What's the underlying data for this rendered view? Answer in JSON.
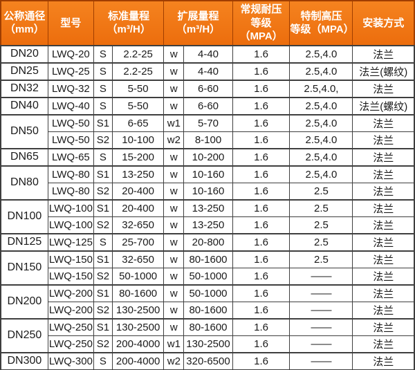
{
  "colors": {
    "header_bg_top": "#f5831f",
    "header_bg_bottom": "#ec6d0d",
    "header_text": "#ffffff",
    "header_separator": "#a03e00",
    "outer_border": "#3e3e3e",
    "group_border": "#3e3e3e",
    "sub_border": "#999999",
    "body_text": "#1a1a1a",
    "body_bg": "#ffffff"
  },
  "header": {
    "col_dn": [
      "公称通径",
      "（mm）"
    ],
    "col_model": "型号",
    "col_std": [
      "标准量程",
      "（m³/H）"
    ],
    "col_ext": [
      "扩展量程",
      "（m³/H）"
    ],
    "col_mpa": [
      "常规耐压",
      "等级（MPA）"
    ],
    "col_hp": [
      "特制高压",
      "等级（MPA）"
    ],
    "col_install": "安装方式"
  },
  "rows": [
    {
      "dn": "DN20",
      "model": "LWQ-20",
      "s": "S",
      "std": "2.2-25",
      "w": "w",
      "ext": "4-40",
      "mpa": "1.6",
      "hp": "2.5,4.0",
      "install": "法兰"
    },
    {
      "dn": "DN25",
      "model": "LWQ-25",
      "s": "S",
      "std": "2.2-25",
      "w": "w",
      "ext": "4-40",
      "mpa": "1.6",
      "hp": "2.5,4.0",
      "install": "法兰(螺纹)"
    },
    {
      "dn": "DN32",
      "model": "LWQ-32",
      "s": "S",
      "std": "5-50",
      "w": "w",
      "ext": "6-60",
      "mpa": "1.6",
      "hp": "2.5,4.0,",
      "install": "法兰"
    },
    {
      "dn": "DN40",
      "model": "LWQ-40",
      "s": "S",
      "std": "5-50",
      "w": "w",
      "ext": "6-60",
      "mpa": "1.6",
      "hp": "2.5,4.0",
      "install": "法兰(螺纹)"
    },
    {
      "dn": "DN50",
      "model": "LWQ-50",
      "s": "S1",
      "std": "6-65",
      "w": "w1",
      "ext": "5-70",
      "mpa": "1.6",
      "hp": "2.5,4.0",
      "install": "法兰"
    },
    {
      "model": "LWQ-50",
      "s": "S2",
      "std": "10-100",
      "w": "w2",
      "ext": "8-100",
      "mpa": "1.6",
      "hp": "2.5,4.0",
      "install": "法兰"
    },
    {
      "dn": "DN65",
      "model": "LWQ-65",
      "s": "S",
      "std": "15-200",
      "w": "w",
      "ext": "10-200",
      "mpa": "1.6",
      "hp": "2.5,4.0",
      "install": "法兰"
    },
    {
      "dn": "DN80",
      "model": "LWQ-80",
      "s": "S1",
      "std": "13-250",
      "w": "w",
      "ext": "10-160",
      "mpa": "1.6",
      "hp": "2.5,4.0",
      "install": "法兰"
    },
    {
      "model": "LWQ-80",
      "s": "S2",
      "std": "20-400",
      "w": "w",
      "ext": "10-160",
      "mpa": "1.6",
      "hp": "2.5",
      "install": "法兰"
    },
    {
      "dn": "DN100",
      "model": "LWQ-100",
      "s": "S1",
      "std": "20-400",
      "w": "w",
      "ext": "13-250",
      "mpa": "1.6",
      "hp": "2.5",
      "install": "法兰"
    },
    {
      "model": "LWQ-100",
      "s": "S2",
      "std": "32-650",
      "w": "w",
      "ext": "13-250",
      "mpa": "1.6",
      "hp": "2.5",
      "install": "法兰"
    },
    {
      "dn": "DN125",
      "model": "LWQ-125",
      "s": "S",
      "std": "25-700",
      "w": "w",
      "ext": "20-800",
      "mpa": "1.6",
      "hp": "2.5",
      "install": "法兰"
    },
    {
      "dn": "DN150",
      "model": "LWQ-150",
      "s": "S1",
      "std": "32-650",
      "w": "w",
      "ext": "80-1600",
      "mpa": "1.6",
      "hp": "2.5",
      "install": "法兰"
    },
    {
      "model": "LWQ-150",
      "s": "S2",
      "std": "50-1000",
      "w": "w",
      "ext": "50-1000",
      "mpa": "1.6",
      "hp": "——",
      "install": "法兰"
    },
    {
      "dn": "DN200",
      "model": "LWQ-200",
      "s": "S1",
      "std": "80-1600",
      "w": "w",
      "ext": "50-1000",
      "mpa": "1.6",
      "hp": "——",
      "install": "法兰"
    },
    {
      "model": "LWQ-200",
      "s": "S2",
      "std": "130-2500",
      "w": "w",
      "ext": "80-1600",
      "mpa": "1.6",
      "hp": "——",
      "install": "法兰"
    },
    {
      "dn": "DN250",
      "model": "LWQ-250",
      "s": "S1",
      "std": "130-2500",
      "w": "w",
      "ext": "80-1600",
      "mpa": "1.6",
      "hp": "——",
      "install": "法兰"
    },
    {
      "model": "LWQ-250",
      "s": "S2",
      "std": "200-4000",
      "w": "w1",
      "ext": "130-2500",
      "mpa": "1.6",
      "hp": "——",
      "install": "法兰"
    },
    {
      "dn": "DN300",
      "model": "LWQ-300",
      "s": "S",
      "std": "200-4000",
      "w": "w2",
      "ext": "320-6500",
      "mpa": "1.6",
      "hp": "——",
      "install": "法兰"
    }
  ]
}
